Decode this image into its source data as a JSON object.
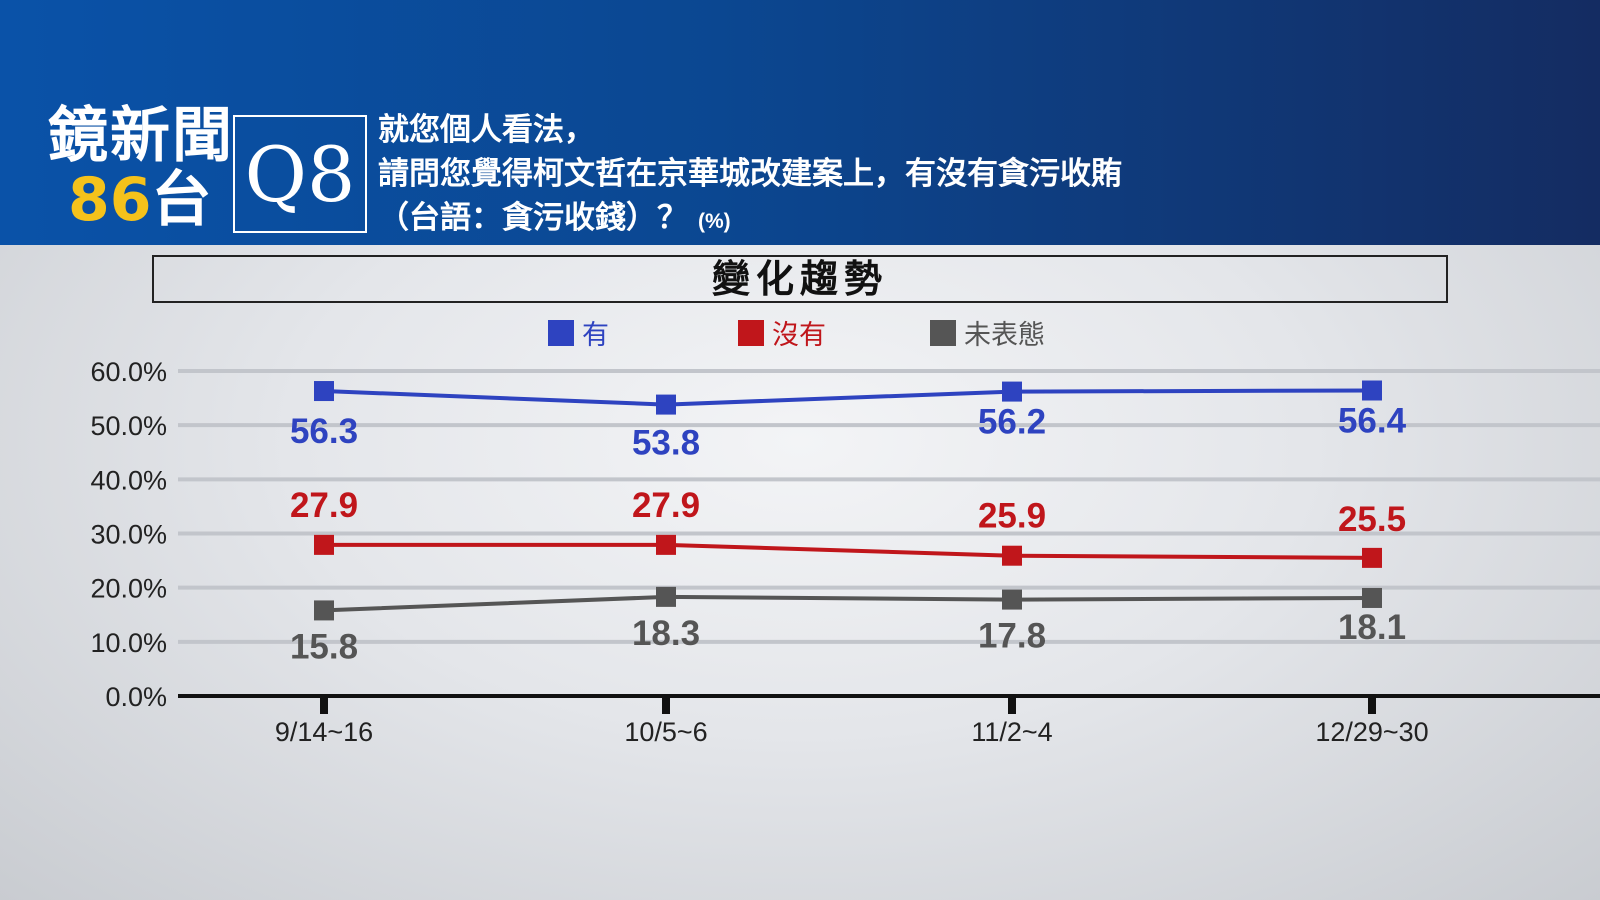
{
  "header": {
    "logo_line1": "鏡新聞",
    "logo_number": "86",
    "logo_channel": "台",
    "question_number": "Q8",
    "question_line1": "就您個人看法，",
    "question_line2": "請問您覺得柯文哲在京華城改建案上，有沒有貪污收賄",
    "question_line3": "（台語：貪污收錢）？",
    "unit": "(%)"
  },
  "panel_title": "變化趨勢",
  "colors": {
    "yes": "#2e43c0",
    "no": "#c0161b",
    "undecided": "#555555"
  },
  "chart_data": {
    "type": "line",
    "categories": [
      "9/14~16",
      "10/5~6",
      "11/2~4",
      "12/29~30"
    ],
    "series": [
      {
        "name": "有",
        "values": [
          56.3,
          53.8,
          56.2,
          56.4
        ]
      },
      {
        "name": "沒有",
        "values": [
          27.9,
          27.9,
          25.9,
          25.5
        ]
      },
      {
        "name": "未表態",
        "values": [
          15.8,
          18.3,
          17.8,
          18.1
        ]
      }
    ],
    "ylim": [
      0,
      60
    ],
    "yticks": [
      "0.0%",
      "10.0%",
      "20.0%",
      "30.0%",
      "40.0%",
      "50.0%",
      "60.0%"
    ],
    "grid": true,
    "legend_position": "top"
  }
}
